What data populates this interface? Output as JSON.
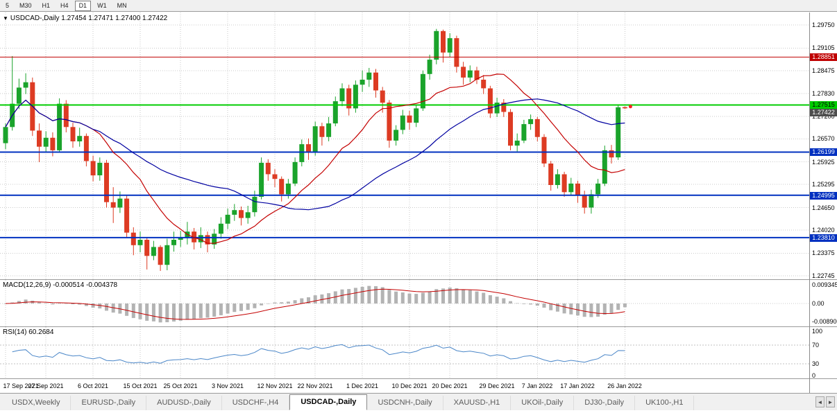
{
  "toolbar": {
    "periods": [
      {
        "label": "5",
        "active": false
      },
      {
        "label": "M30",
        "active": false
      },
      {
        "label": "H1",
        "active": false
      },
      {
        "label": "H4",
        "active": false
      },
      {
        "label": "D1",
        "active": true
      },
      {
        "label": "W1",
        "active": false
      },
      {
        "label": "MN",
        "active": false
      }
    ]
  },
  "chart": {
    "collapse_icon": "▼",
    "symbol": "USDCAD-,Daily",
    "ohlc_text": "1.27454 1.27471 1.27400 1.27422"
  },
  "chart_data": {
    "type": "candlestick",
    "title": "USDCAD-,Daily",
    "ohlc_display": {
      "open": "1.27454",
      "high": "1.27471",
      "low": "1.27400",
      "close": "1.27422"
    },
    "x_axis_labels": [
      "17 Sep 2021",
      "27 Sep 2021",
      "6 Oct 2021",
      "15 Oct 2021",
      "25 Oct 2021",
      "3 Nov 2021",
      "12 Nov 2021",
      "22 Nov 2021",
      "1 Dec 2021",
      "10 Dec 2021",
      "20 Dec 2021",
      "29 Dec 2021",
      "7 Jan 2022",
      "17 Jan 2022",
      "26 Jan 2022"
    ],
    "x_label_candle_indices": [
      0,
      6,
      13,
      20,
      26,
      33,
      40,
      46,
      53,
      60,
      66,
      73,
      79,
      85,
      92
    ],
    "y_ticks": [
      "1.29750",
      "1.29105",
      "1.28475",
      "1.27830",
      "1.27200",
      "1.26570",
      "1.25925",
      "1.25295",
      "1.24650",
      "1.24020",
      "1.23375",
      "1.22745"
    ],
    "candles": [
      [
        1.2645,
        1.27,
        1.2628,
        1.269
      ],
      [
        1.269,
        1.2888,
        1.268,
        1.2755
      ],
      [
        1.2755,
        1.2825,
        1.274,
        1.28
      ],
      [
        1.28,
        1.284,
        1.2782,
        1.2815
      ],
      [
        1.2815,
        1.2828,
        1.2665,
        1.268
      ],
      [
        1.268,
        1.27,
        1.2592,
        1.2635
      ],
      [
        1.2635,
        1.2678,
        1.2618,
        1.266
      ],
      [
        1.266,
        1.2675,
        1.2608,
        1.2625
      ],
      [
        1.2625,
        1.277,
        1.2618,
        1.2755
      ],
      [
        1.2755,
        1.2765,
        1.2675,
        1.269
      ],
      [
        1.269,
        1.2702,
        1.2632,
        1.265
      ],
      [
        1.265,
        1.2688,
        1.2635,
        1.2665
      ],
      [
        1.2665,
        1.2672,
        1.258,
        1.2595
      ],
      [
        1.2595,
        1.261,
        1.2538,
        1.2555
      ],
      [
        1.2555,
        1.2605,
        1.254,
        1.259
      ],
      [
        1.259,
        1.2598,
        1.2465,
        1.248
      ],
      [
        1.248,
        1.2522,
        1.2422,
        1.2465
      ],
      [
        1.2465,
        1.251,
        1.245,
        1.249
      ],
      [
        1.249,
        1.2498,
        1.238,
        1.2395
      ],
      [
        1.2395,
        1.241,
        1.2332,
        1.236
      ],
      [
        1.236,
        1.2398,
        1.234,
        1.2375
      ],
      [
        1.2375,
        1.2382,
        1.2292,
        1.233
      ],
      [
        1.233,
        1.2372,
        1.2318,
        1.2355
      ],
      [
        1.2355,
        1.236,
        1.2288,
        1.2305
      ],
      [
        1.2305,
        1.2378,
        1.229,
        1.236
      ],
      [
        1.236,
        1.2398,
        1.2342,
        1.2375
      ],
      [
        1.2375,
        1.24,
        1.2355,
        1.238
      ],
      [
        1.238,
        1.2425,
        1.2362,
        1.2398
      ],
      [
        1.2398,
        1.2408,
        1.2348,
        1.2368
      ],
      [
        1.2368,
        1.241,
        1.2352,
        1.2388
      ],
      [
        1.2388,
        1.2398,
        1.234,
        1.2362
      ],
      [
        1.2362,
        1.2405,
        1.235,
        1.2392
      ],
      [
        1.2392,
        1.2438,
        1.2378,
        1.242
      ],
      [
        1.242,
        1.2462,
        1.2405,
        1.2445
      ],
      [
        1.2445,
        1.2475,
        1.2428,
        1.2458
      ],
      [
        1.2458,
        1.2468,
        1.2415,
        1.2436
      ],
      [
        1.2436,
        1.247,
        1.242,
        1.2452
      ],
      [
        1.2452,
        1.2512,
        1.244,
        1.2495
      ],
      [
        1.2495,
        1.2605,
        1.2488,
        1.259
      ],
      [
        1.259,
        1.26,
        1.254,
        1.2558
      ],
      [
        1.2558,
        1.2572,
        1.2522,
        1.2545
      ],
      [
        1.2545,
        1.2552,
        1.2482,
        1.2502
      ],
      [
        1.2502,
        1.2545,
        1.249,
        1.2532
      ],
      [
        1.2532,
        1.2605,
        1.2525,
        1.2592
      ],
      [
        1.2592,
        1.2655,
        1.258,
        1.2642
      ],
      [
        1.2642,
        1.2658,
        1.2598,
        1.2618
      ],
      [
        1.2618,
        1.2705,
        1.261,
        1.2692
      ],
      [
        1.2692,
        1.2702,
        1.2638,
        1.2662
      ],
      [
        1.2662,
        1.2718,
        1.265,
        1.27
      ],
      [
        1.27,
        1.2775,
        1.2692,
        1.2762
      ],
      [
        1.2762,
        1.2812,
        1.2748,
        1.2798
      ],
      [
        1.2798,
        1.2808,
        1.2722,
        1.2742
      ],
      [
        1.2742,
        1.282,
        1.273,
        1.2808
      ],
      [
        1.2808,
        1.2848,
        1.2788,
        1.2822
      ],
      [
        1.2822,
        1.2855,
        1.2802,
        1.2842
      ],
      [
        1.2842,
        1.2852,
        1.2772,
        1.2792
      ],
      [
        1.2792,
        1.2802,
        1.273,
        1.2758
      ],
      [
        1.2758,
        1.2765,
        1.2632,
        1.2652
      ],
      [
        1.2652,
        1.2695,
        1.2638,
        1.2682
      ],
      [
        1.2682,
        1.2738,
        1.267,
        1.2722
      ],
      [
        1.2722,
        1.2735,
        1.2682,
        1.2702
      ],
      [
        1.2702,
        1.2752,
        1.269,
        1.2742
      ],
      [
        1.2742,
        1.2848,
        1.2735,
        1.2838
      ],
      [
        1.2838,
        1.2892,
        1.2822,
        1.2878
      ],
      [
        1.2878,
        1.2964,
        1.2865,
        1.2958
      ],
      [
        1.2958,
        1.2962,
        1.287,
        1.2898
      ],
      [
        1.2898,
        1.2952,
        1.2885,
        1.2938
      ],
      [
        1.2938,
        1.2945,
        1.2842,
        1.2858
      ],
      [
        1.2858,
        1.2872,
        1.2808,
        1.2828
      ],
      [
        1.2828,
        1.2862,
        1.2815,
        1.2848
      ],
      [
        1.2848,
        1.2858,
        1.281,
        1.2822
      ],
      [
        1.2822,
        1.2835,
        1.2782,
        1.2798
      ],
      [
        1.2798,
        1.2805,
        1.2715,
        1.2728
      ],
      [
        1.2728,
        1.2772,
        1.2718,
        1.2758
      ],
      [
        1.2758,
        1.2768,
        1.2718,
        1.2732
      ],
      [
        1.2732,
        1.274,
        1.2625,
        1.2638
      ],
      [
        1.2638,
        1.2672,
        1.2622,
        1.2652
      ],
      [
        1.2652,
        1.271,
        1.2645,
        1.2698
      ],
      [
        1.2698,
        1.2725,
        1.2682,
        1.2712
      ],
      [
        1.2712,
        1.2718,
        1.265,
        1.2662
      ],
      [
        1.2662,
        1.267,
        1.2578,
        1.2588
      ],
      [
        1.2588,
        1.2595,
        1.2512,
        1.2528
      ],
      [
        1.2528,
        1.2572,
        1.2518,
        1.2558
      ],
      [
        1.2558,
        1.2565,
        1.2495,
        1.2508
      ],
      [
        1.2508,
        1.2548,
        1.2498,
        1.2532
      ],
      [
        1.2532,
        1.254,
        1.2478,
        1.2498
      ],
      [
        1.2498,
        1.2512,
        1.2448,
        1.2465
      ],
      [
        1.2465,
        1.2515,
        1.2448,
        1.2502
      ],
      [
        1.2502,
        1.2545,
        1.2492,
        1.2532
      ],
      [
        1.2532,
        1.2638,
        1.2525,
        1.2625
      ],
      [
        1.2625,
        1.264,
        1.2588,
        1.2605
      ],
      [
        1.2605,
        1.275,
        1.2598,
        1.2745
      ],
      [
        1.27454,
        1.27471,
        1.274,
        1.27422
      ]
    ],
    "candle_colors": {
      "up": "#1aa32b",
      "down": "#dd3b23"
    },
    "moving_averages": [
      {
        "period": 13,
        "color": "#c40000"
      },
      {
        "period": 34,
        "color": "#0000a0"
      }
    ],
    "horizontal_lines": [
      {
        "price": 1.28851,
        "label": "1.28851",
        "color": "#c00000",
        "width": 1,
        "text_color": "#ffffff"
      },
      {
        "price": 1.27515,
        "label": "1.27515",
        "color": "#00cc00",
        "width": 2,
        "text_color": "#000000"
      },
      {
        "price": 1.26199,
        "label": "1.26199",
        "color": "#0030c0",
        "width": 2,
        "text_color": "#ffffff"
      },
      {
        "price": 1.24995,
        "label": "1.24995",
        "color": "#0030c0",
        "width": 2,
        "text_color": "#ffffff"
      },
      {
        "price": 1.2381,
        "label": "1.23810",
        "color": "#0030c0",
        "width": 2,
        "text_color": "#ffffff"
      }
    ],
    "current_price_tag": {
      "price": 1.27422,
      "label": "1.27422",
      "color": "#4d4d4d",
      "text_color": "#ffffff"
    },
    "marker": {
      "candle_index": 92,
      "price": 1.2747,
      "color": "#ff2020"
    },
    "indicators": {
      "macd": {
        "name": "MACD(12,26,9)",
        "values_text": "-0.000514 -0.004378",
        "fast": 12,
        "slow": 26,
        "signal": 9,
        "ticks": [
          {
            "value": 0.009345,
            "label": "0.009345"
          },
          {
            "value": 0,
            "label": "0.00"
          },
          {
            "value": -0.0089,
            "label": "-0.008900"
          }
        ],
        "histogram_color": "#b3b3b3",
        "signal_color": "#c40000"
      },
      "rsi": {
        "name": "RSI(14)",
        "value_text": "60.2684",
        "period": 14,
        "ticks": [
          {
            "value": 100,
            "label": "100"
          },
          {
            "value": 70,
            "label": "70"
          },
          {
            "value": 30,
            "label": "30"
          },
          {
            "value": 0,
            "label": "0"
          }
        ],
        "levels": [
          70,
          30
        ],
        "line_color": "#4a86c8"
      }
    }
  },
  "tabs": {
    "items": [
      {
        "label": "USDX,Weekly",
        "active": false
      },
      {
        "label": "EURUSD-,Daily",
        "active": false
      },
      {
        "label": "AUDUSD-,Daily",
        "active": false
      },
      {
        "label": "USDCHF-,H4",
        "active": false
      },
      {
        "label": "USDCAD-,Daily",
        "active": true
      },
      {
        "label": "USDCNH-,Daily",
        "active": false
      },
      {
        "label": "XAUUSD-,H1",
        "active": false
      },
      {
        "label": "UKOil-,Daily",
        "active": false
      },
      {
        "label": "DJ30-,Daily",
        "active": false
      },
      {
        "label": "UK100-,H1",
        "active": false
      }
    ],
    "scroll_left": "◄",
    "scroll_right": "►"
  }
}
